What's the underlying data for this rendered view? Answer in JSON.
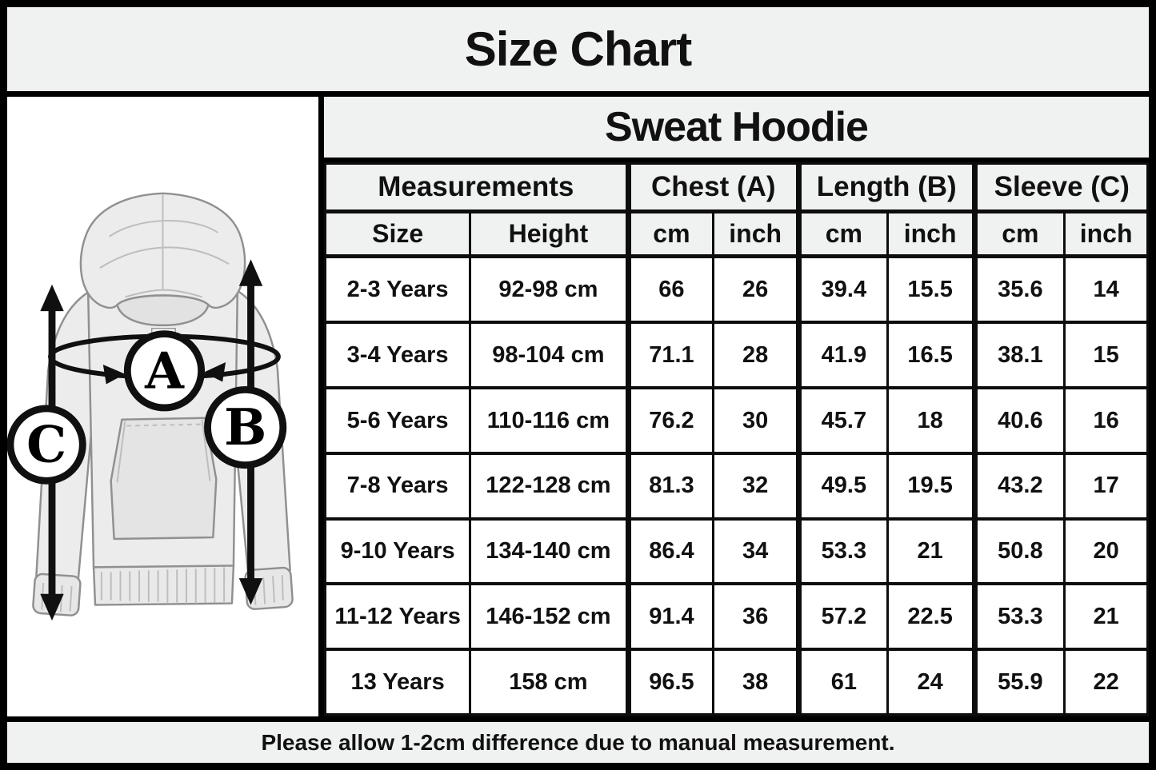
{
  "title": "Size Chart",
  "product": "Sweat Hoodie",
  "footer_note": "Please allow 1-2cm difference due to manual measurement.",
  "diagram": {
    "markers": [
      "A",
      "B",
      "C"
    ]
  },
  "table": {
    "groups": [
      {
        "label": "Measurements",
        "span": 2
      },
      {
        "label": "Chest (A)",
        "span": 2
      },
      {
        "label": "Length (B)",
        "span": 2
      },
      {
        "label": "Sleeve (C)",
        "span": 2
      }
    ],
    "sub_headers": [
      "Size",
      "Height",
      "cm",
      "inch",
      "cm",
      "inch",
      "cm",
      "inch"
    ],
    "col_keys": [
      "size",
      "height",
      "chest-cm",
      "chest-inch",
      "length-cm",
      "length-inch",
      "sleeve-cm",
      "sleeve-inch"
    ],
    "rows": [
      [
        "2-3 Years",
        "92-98 cm",
        "66",
        "26",
        "39.4",
        "15.5",
        "35.6",
        "14"
      ],
      [
        "3-4 Years",
        "98-104 cm",
        "71.1",
        "28",
        "41.9",
        "16.5",
        "38.1",
        "15"
      ],
      [
        "5-6 Years",
        "110-116 cm",
        "76.2",
        "30",
        "45.7",
        "18",
        "40.6",
        "16"
      ],
      [
        "7-8 Years",
        "122-128 cm",
        "81.3",
        "32",
        "49.5",
        "19.5",
        "43.2",
        "17"
      ],
      [
        "9-10 Years",
        "134-140 cm",
        "86.4",
        "34",
        "53.3",
        "21",
        "50.8",
        "20"
      ],
      [
        "11-12 Years",
        "146-152 cm",
        "91.4",
        "36",
        "57.2",
        "22.5",
        "53.3",
        "21"
      ],
      [
        "13 Years",
        "158 cm",
        "96.5",
        "38",
        "61",
        "24",
        "55.9",
        "22"
      ]
    ]
  },
  "colors": {
    "band_bg": "#f0f1f1",
    "cell_bg": "#ffffff",
    "border": "#0d0d0d",
    "text": "#111111",
    "sketch_fill": "#ececec",
    "sketch_stroke": "#909090"
  }
}
